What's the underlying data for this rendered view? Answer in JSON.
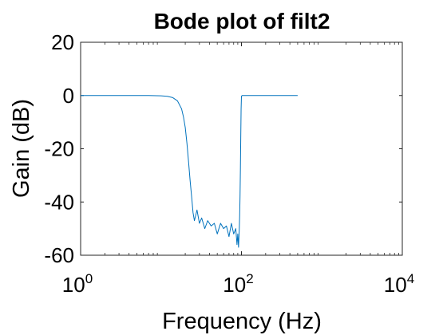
{
  "chart_data": {
    "type": "line",
    "title": "Bode plot of filt2",
    "xlabel": "Frequency (Hz)",
    "ylabel": "Gain (dB)",
    "xscale": "log",
    "xlim": [
      1,
      10000
    ],
    "ylim": [
      -60,
      20
    ],
    "grid": false,
    "legend": "none",
    "x_ticks": [
      {
        "value": 1,
        "base": "10",
        "exp": "0"
      },
      {
        "value": 100,
        "base": "10",
        "exp": "2"
      },
      {
        "value": 10000,
        "base": "10",
        "exp": "4"
      }
    ],
    "y_ticks": [
      20,
      0,
      -20,
      -40,
      -60
    ],
    "series": [
      {
        "color": "#0072BD",
        "x": [
          1,
          2,
          4,
          7,
          10,
          12,
          14,
          16,
          18,
          19,
          20,
          21,
          22,
          23,
          24,
          25,
          26,
          27,
          28,
          30,
          32,
          35,
          38,
          42,
          46,
          50,
          55,
          60,
          65,
          70,
          75,
          80,
          85,
          88,
          90,
          92,
          94,
          95,
          96,
          97,
          98,
          99,
          100,
          102,
          105,
          110,
          150,
          200,
          300,
          500
        ],
        "y": [
          0,
          0,
          0,
          0,
          -0.1,
          -0.3,
          -0.8,
          -2,
          -5,
          -8,
          -12,
          -18,
          -25,
          -32,
          -38,
          -44,
          -47,
          -45,
          -43,
          -48,
          -46,
          -50,
          -47,
          -49,
          -48,
          -52,
          -48,
          -50,
          -49,
          -53,
          -48,
          -52,
          -50,
          -56,
          -52,
          -57,
          -50,
          -45,
          -38,
          -28,
          -16,
          -5,
          -0.3,
          0,
          0,
          0,
          0,
          0,
          0,
          0
        ]
      }
    ]
  }
}
